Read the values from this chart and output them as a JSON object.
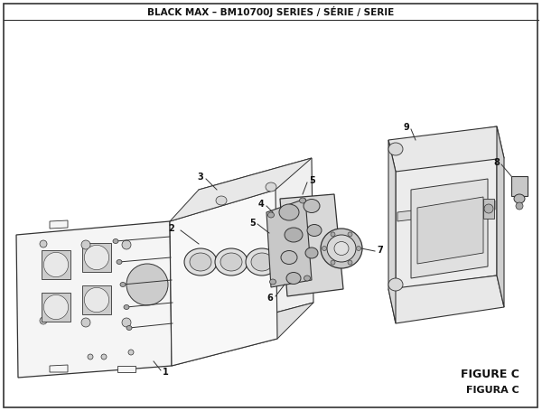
{
  "title": "BLACK MAX – BM10700J SERIES / SÉRIE / SERIE",
  "figure_label": "FIGURE C",
  "figura_label": "FIGURA C",
  "bg_color": "#ffffff",
  "line_color": "#333333",
  "title_fontsize": 7.5,
  "label_fontsize": 7,
  "fig_label_fontsize": 9
}
